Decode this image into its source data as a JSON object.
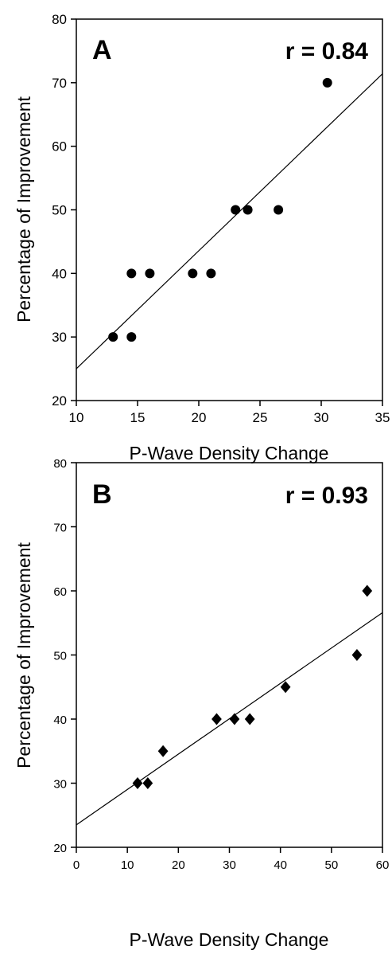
{
  "chart_data": [
    {
      "type": "scatter",
      "panel_label": "A",
      "annotation": "r = 0.84",
      "xlabel": "P-Wave Density Change",
      "ylabel": "Percentage of Improvement",
      "xlim": [
        10,
        35
      ],
      "ylim": [
        20,
        80
      ],
      "x_ticks": [
        10,
        15,
        20,
        25,
        30,
        35
      ],
      "y_ticks": [
        20,
        30,
        40,
        50,
        60,
        70,
        80
      ],
      "marker": "circle",
      "grid": false,
      "points": [
        {
          "x": 13,
          "y": 30
        },
        {
          "x": 14.5,
          "y": 30
        },
        {
          "x": 14.5,
          "y": 40
        },
        {
          "x": 16,
          "y": 40
        },
        {
          "x": 19.5,
          "y": 40
        },
        {
          "x": 21,
          "y": 40
        },
        {
          "x": 23,
          "y": 50
        },
        {
          "x": 24,
          "y": 50
        },
        {
          "x": 26.5,
          "y": 50
        },
        {
          "x": 30.5,
          "y": 70
        }
      ],
      "fit_line": {
        "x": [
          10,
          35
        ],
        "y": [
          25,
          71.4
        ]
      }
    },
    {
      "type": "scatter",
      "panel_label": "B",
      "annotation": "r = 0.93",
      "xlabel": "P-Wave Density Change",
      "ylabel": "Percentage of Improvement",
      "xlim": [
        0,
        60
      ],
      "ylim": [
        20,
        80
      ],
      "x_ticks": [
        0,
        10,
        20,
        30,
        40,
        50,
        60
      ],
      "y_ticks": [
        20,
        30,
        40,
        50,
        60,
        70,
        80
      ],
      "marker": "diamond",
      "grid": false,
      "points": [
        {
          "x": 12,
          "y": 30
        },
        {
          "x": 14,
          "y": 30
        },
        {
          "x": 17,
          "y": 35
        },
        {
          "x": 27.5,
          "y": 40
        },
        {
          "x": 31,
          "y": 40
        },
        {
          "x": 34,
          "y": 40
        },
        {
          "x": 41,
          "y": 45
        },
        {
          "x": 55,
          "y": 50
        },
        {
          "x": 57,
          "y": 60
        }
      ],
      "fit_line": {
        "x": [
          0,
          60
        ],
        "y": [
          23.5,
          56.6
        ]
      }
    }
  ]
}
